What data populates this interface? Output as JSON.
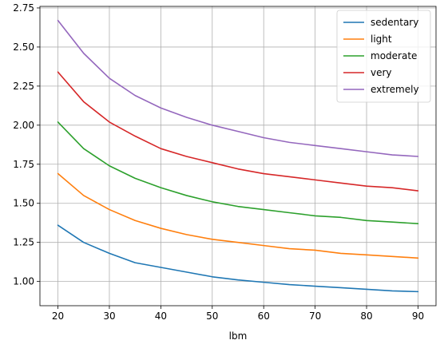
{
  "chart_data": {
    "type": "line",
    "title": "",
    "xlabel": "lbm",
    "ylabel": "",
    "xlim": [
      16.5,
      93.5
    ],
    "ylim": [
      0.845,
      2.76
    ],
    "grid": true,
    "legend_position": "top-right",
    "x_ticks": [
      20,
      30,
      40,
      50,
      60,
      70,
      80,
      90
    ],
    "y_ticks": [
      1.0,
      1.25,
      1.5,
      1.75,
      2.0,
      2.25,
      2.5,
      2.75
    ],
    "x_tick_labels": [
      "20",
      "30",
      "40",
      "50",
      "60",
      "70",
      "80",
      "90"
    ],
    "y_tick_labels": [
      "1.00",
      "1.25",
      "1.50",
      "1.75",
      "2.00",
      "2.25",
      "2.50",
      "2.75"
    ],
    "x": [
      20,
      25,
      30,
      35,
      40,
      45,
      50,
      55,
      60,
      65,
      70,
      75,
      80,
      85,
      90
    ],
    "series": [
      {
        "name": "sedentary",
        "color": "#1f77b4",
        "values": [
          1.36,
          1.25,
          1.18,
          1.12,
          1.09,
          1.06,
          1.03,
          1.01,
          0.995,
          0.98,
          0.97,
          0.96,
          0.95,
          0.94,
          0.935
        ]
      },
      {
        "name": "light",
        "color": "#ff7f0e",
        "values": [
          1.69,
          1.55,
          1.46,
          1.39,
          1.34,
          1.3,
          1.27,
          1.25,
          1.23,
          1.21,
          1.2,
          1.18,
          1.17,
          1.16,
          1.15
        ]
      },
      {
        "name": "moderate",
        "color": "#2ca02c",
        "values": [
          2.02,
          1.85,
          1.74,
          1.66,
          1.6,
          1.55,
          1.51,
          1.48,
          1.46,
          1.44,
          1.42,
          1.41,
          1.39,
          1.38,
          1.37
        ]
      },
      {
        "name": "very",
        "color": "#d62728",
        "values": [
          2.34,
          2.15,
          2.02,
          1.93,
          1.85,
          1.8,
          1.76,
          1.72,
          1.69,
          1.67,
          1.65,
          1.63,
          1.61,
          1.6,
          1.58
        ]
      },
      {
        "name": "extremely",
        "color": "#9467bd",
        "values": [
          2.67,
          2.46,
          2.3,
          2.19,
          2.11,
          2.05,
          2.0,
          1.96,
          1.92,
          1.89,
          1.87,
          1.85,
          1.83,
          1.81,
          1.8
        ]
      }
    ]
  }
}
